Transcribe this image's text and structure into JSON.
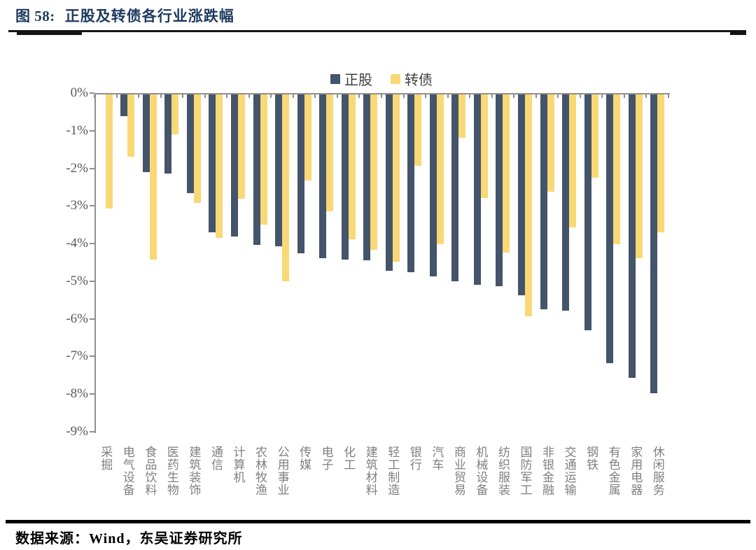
{
  "figure": {
    "title_label": "图 58:",
    "title_text": "正股及转债各行业涨跌幅",
    "source_text": "数据来源：Wind，东吴证券研究所"
  },
  "colors": {
    "title_navy": "#1E3A5E",
    "stock_bar": "#44546A",
    "bond_bar": "#F9D876",
    "axis_gray": "#8F8F8F",
    "y_label_gray": "#595959",
    "category_label_gray": "#7F7F7F",
    "rule_black": "#151515"
  },
  "chart_data": {
    "type": "bar",
    "title": "正股及转债各行业涨跌幅",
    "legend_position": "top-center",
    "grid": false,
    "ylabel": "",
    "xlabel": "",
    "ylim": [
      -9,
      0
    ],
    "ytick_labels": [
      "0%",
      "-1%",
      "-2%",
      "-3%",
      "-4%",
      "-5%",
      "-6%",
      "-7%",
      "-8%",
      "-9%"
    ],
    "categories": [
      "采掘",
      "电气设备",
      "食品饮料",
      "医药生物",
      "建筑装饰",
      "通信",
      "计算机",
      "农林牧渔",
      "公用事业",
      "传媒",
      "电子",
      "化工",
      "建筑材料",
      "轻工制造",
      "银行",
      "汽车",
      "商业贸易",
      "机械设备",
      "纺织服装",
      "国防军工",
      "非银金融",
      "交通运输",
      "钢铁",
      "有色金属",
      "家用电器",
      "休闲服务"
    ],
    "series": [
      {
        "name": "正股",
        "color": "#44546A",
        "values": [
          0,
          -0.58,
          -2.07,
          -2.11,
          -2.63,
          -3.66,
          -3.78,
          -4.0,
          -4.04,
          -4.22,
          -4.36,
          -4.38,
          -4.4,
          -4.69,
          -4.72,
          -4.84,
          -4.97,
          -5.06,
          -5.09,
          -5.33,
          -5.71,
          -5.74,
          -6.27,
          -7.14,
          -7.54,
          -7.94
        ]
      },
      {
        "name": "转债",
        "color": "#F9D876",
        "values": [
          -3.03,
          -1.65,
          -4.38,
          -1.06,
          -2.89,
          -3.82,
          -2.77,
          -3.45,
          -4.97,
          -2.28,
          -3.11,
          -3.84,
          -4.13,
          -4.44,
          -1.9,
          -3.98,
          -1.15,
          -2.75,
          -4.21,
          -5.9,
          -2.58,
          -3.54,
          -2.21,
          -3.98,
          -4.35,
          -3.67
        ]
      }
    ]
  }
}
